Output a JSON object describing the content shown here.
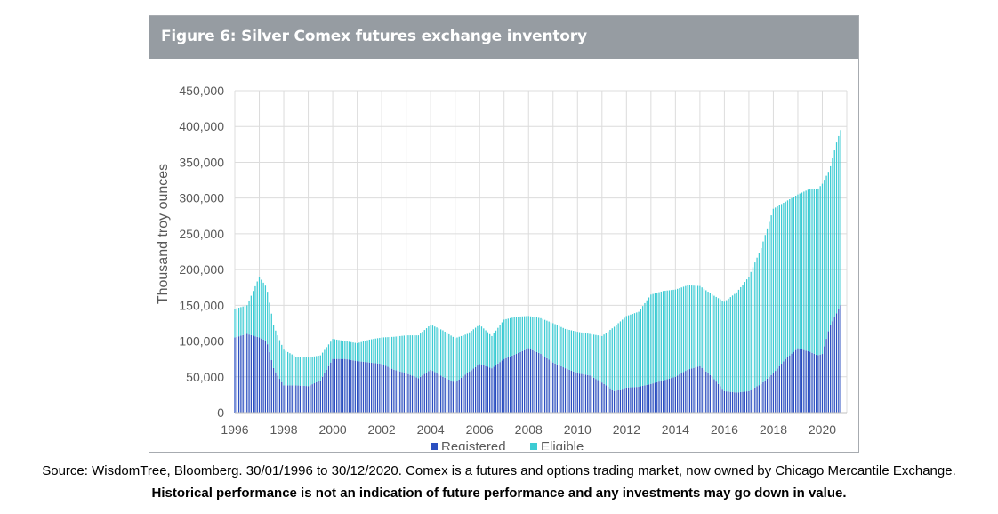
{
  "figure": {
    "title": "Figure 6: Silver Comex futures exchange inventory"
  },
  "footer": {
    "source": "Source: WisdomTree, Bloomberg. 30/01/1996 to 30/12/2020. Comex is a futures and options trading market, now owned by Chicago Mercantile Exchange.",
    "disclaimer": "Historical performance is not an indication of future performance and any investments may go down in value."
  },
  "chart_data": {
    "type": "bar",
    "stacked": true,
    "ylabel": "Thousand troy ounces",
    "ylim": [
      0,
      450000
    ],
    "yticks": [
      "0",
      "50,000",
      "100,000",
      "150,000",
      "200,000",
      "250,000",
      "300,000",
      "350,000",
      "400,000",
      "450,000"
    ],
    "xlim": [
      1996.0,
      2021.0
    ],
    "xticks": [
      "1996",
      "1998",
      "2000",
      "2002",
      "2004",
      "2006",
      "2008",
      "2010",
      "2012",
      "2014",
      "2016",
      "2018",
      "2020"
    ],
    "grid": "vertical gridlines at every year",
    "legend": "bottom-center",
    "series": [
      {
        "name": "Registered",
        "color": "#2b4fc0",
        "points": [
          [
            1996.0,
            105000
          ],
          [
            1996.5,
            110000
          ],
          [
            1997.0,
            105000
          ],
          [
            1997.3,
            100000
          ],
          [
            1997.6,
            60000
          ],
          [
            1998.0,
            38000
          ],
          [
            1998.5,
            38000
          ],
          [
            1999.0,
            37000
          ],
          [
            1999.5,
            45000
          ],
          [
            2000.0,
            75000
          ],
          [
            2000.5,
            75000
          ],
          [
            2001.0,
            72000
          ],
          [
            2001.5,
            70000
          ],
          [
            2002.0,
            68000
          ],
          [
            2002.5,
            60000
          ],
          [
            2003.0,
            55000
          ],
          [
            2003.5,
            48000
          ],
          [
            2004.0,
            60000
          ],
          [
            2004.5,
            50000
          ],
          [
            2005.0,
            42000
          ],
          [
            2005.5,
            55000
          ],
          [
            2006.0,
            68000
          ],
          [
            2006.5,
            62000
          ],
          [
            2007.0,
            75000
          ],
          [
            2007.5,
            82000
          ],
          [
            2008.0,
            90000
          ],
          [
            2008.5,
            82000
          ],
          [
            2009.0,
            70000
          ],
          [
            2009.5,
            62000
          ],
          [
            2010.0,
            55000
          ],
          [
            2010.5,
            52000
          ],
          [
            2011.0,
            42000
          ],
          [
            2011.5,
            30000
          ],
          [
            2012.0,
            35000
          ],
          [
            2012.5,
            36000
          ],
          [
            2013.0,
            40000
          ],
          [
            2013.5,
            45000
          ],
          [
            2014.0,
            50000
          ],
          [
            2014.5,
            60000
          ],
          [
            2015.0,
            65000
          ],
          [
            2015.5,
            50000
          ],
          [
            2016.0,
            30000
          ],
          [
            2016.5,
            28000
          ],
          [
            2017.0,
            30000
          ],
          [
            2017.5,
            40000
          ],
          [
            2018.0,
            55000
          ],
          [
            2018.5,
            75000
          ],
          [
            2019.0,
            90000
          ],
          [
            2019.5,
            85000
          ],
          [
            2019.8,
            80000
          ],
          [
            2020.0,
            82000
          ],
          [
            2020.3,
            120000
          ],
          [
            2020.6,
            140000
          ],
          [
            2020.75,
            150000
          ]
        ]
      },
      {
        "name": "Eligible",
        "color": "#3ccbd3",
        "points": [
          [
            1996.0,
            40000
          ],
          [
            1996.5,
            40000
          ],
          [
            1997.0,
            85000
          ],
          [
            1997.3,
            75000
          ],
          [
            1997.6,
            60000
          ],
          [
            1998.0,
            50000
          ],
          [
            1998.5,
            40000
          ],
          [
            1999.0,
            40000
          ],
          [
            1999.5,
            35000
          ],
          [
            2000.0,
            28000
          ],
          [
            2000.5,
            25000
          ],
          [
            2001.0,
            25000
          ],
          [
            2001.5,
            32000
          ],
          [
            2002.0,
            37000
          ],
          [
            2002.5,
            46000
          ],
          [
            2003.0,
            53000
          ],
          [
            2003.5,
            60000
          ],
          [
            2004.0,
            63000
          ],
          [
            2004.5,
            65000
          ],
          [
            2005.0,
            62000
          ],
          [
            2005.5,
            55000
          ],
          [
            2006.0,
            55000
          ],
          [
            2006.5,
            45000
          ],
          [
            2007.0,
            55000
          ],
          [
            2007.5,
            52000
          ],
          [
            2008.0,
            45000
          ],
          [
            2008.5,
            50000
          ],
          [
            2009.0,
            55000
          ],
          [
            2009.5,
            55000
          ],
          [
            2010.0,
            58000
          ],
          [
            2010.5,
            58000
          ],
          [
            2011.0,
            65000
          ],
          [
            2011.5,
            90000
          ],
          [
            2012.0,
            100000
          ],
          [
            2012.5,
            105000
          ],
          [
            2013.0,
            125000
          ],
          [
            2013.5,
            125000
          ],
          [
            2014.0,
            122000
          ],
          [
            2014.5,
            118000
          ],
          [
            2015.0,
            112000
          ],
          [
            2015.5,
            115000
          ],
          [
            2016.0,
            125000
          ],
          [
            2016.5,
            140000
          ],
          [
            2017.0,
            160000
          ],
          [
            2017.5,
            190000
          ],
          [
            2018.0,
            230000
          ],
          [
            2018.5,
            220000
          ],
          [
            2019.0,
            215000
          ],
          [
            2019.5,
            228000
          ],
          [
            2019.8,
            232000
          ],
          [
            2020.0,
            238000
          ],
          [
            2020.3,
            220000
          ],
          [
            2020.6,
            240000
          ],
          [
            2020.75,
            245000
          ]
        ]
      }
    ]
  }
}
